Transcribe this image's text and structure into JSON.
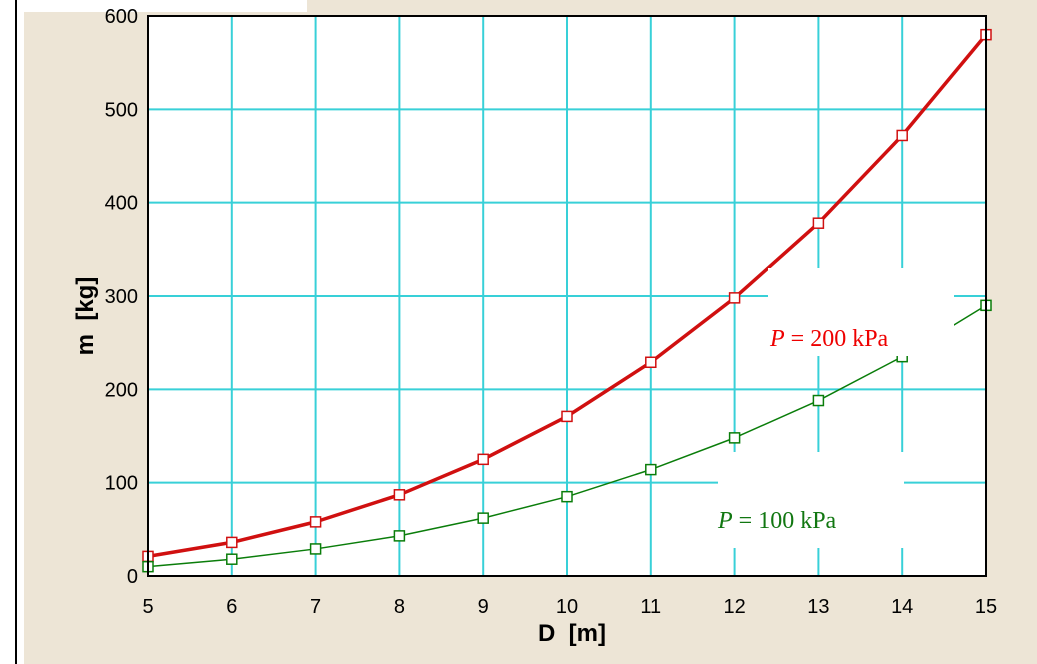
{
  "chart_data": {
    "type": "line",
    "xlabel": "D  [m]",
    "ylabel": "m  [kg]",
    "xlim": [
      5,
      15
    ],
    "ylim": [
      0,
      600
    ],
    "xticks": [
      "5",
      "6",
      "7",
      "8",
      "9",
      "10",
      "11",
      "12",
      "13",
      "14",
      "15"
    ],
    "yticks": [
      "0",
      "100",
      "200",
      "300",
      "400",
      "500",
      "600"
    ],
    "grid": true,
    "series": [
      {
        "name": "P = 200 kPa",
        "color": "#d01010",
        "x": [
          5,
          6,
          7,
          8,
          9,
          10,
          11,
          12,
          13,
          14,
          15
        ],
        "y": [
          21,
          36,
          58,
          87,
          125,
          171,
          229,
          298,
          378,
          472,
          580
        ]
      },
      {
        "name": "P = 100 kPa",
        "color": "#0a7d0a",
        "x": [
          5,
          6,
          7,
          8,
          9,
          10,
          11,
          12,
          13,
          14,
          15
        ],
        "y": [
          10,
          18,
          29,
          43,
          62,
          85,
          114,
          148,
          188,
          235,
          290
        ]
      }
    ],
    "annotations": [
      {
        "var": "P",
        "text": " = 200 kPa",
        "color": "#ee0000"
      },
      {
        "var": "P",
        "text": " = 100 kPa",
        "color": "#117711"
      }
    ]
  }
}
